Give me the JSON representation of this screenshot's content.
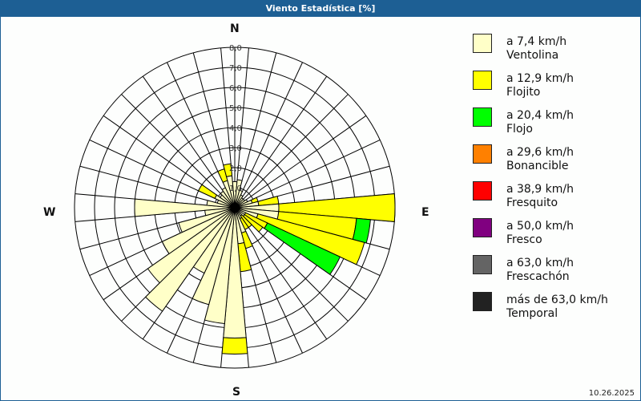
{
  "window": {
    "title": "Viento Estadística [%]"
  },
  "date": "10.26.2025",
  "compass": {
    "N": "N",
    "E": "E",
    "S": "S",
    "W": "W"
  },
  "legend": [
    {
      "range": "a 7,4 km/h",
      "name": "Ventolina",
      "color": "#ffffc8"
    },
    {
      "range": "a 12,9 km/h",
      "name": "Flojito",
      "color": "#ffff00"
    },
    {
      "range": "a 20,4 km/h",
      "name": "Flojo",
      "color": "#00ff00"
    },
    {
      "range": "a 29,6 km/h",
      "name": "Bonancible",
      "color": "#ff8000"
    },
    {
      "range": "a 38,9 km/h",
      "name": "Fresquito",
      "color": "#ff0000"
    },
    {
      "range": "a 50,0 km/h",
      "name": "Fresco",
      "color": "#800080"
    },
    {
      "range": "a 63,0 km/h",
      "name": "Frescachón",
      "color": "#646464"
    },
    {
      "range": "más de 63,0 km/h",
      "name": "Temporal",
      "color": "#222222"
    }
  ],
  "chart_data": {
    "type": "wind-rose",
    "title": "Viento Estadística [%]",
    "radial_ticks": [
      "1,0",
      "2,0",
      "3,0",
      "4,0",
      "5,0",
      "6,0",
      "7,0",
      "8,0"
    ],
    "rmax": 8.0,
    "sector_width_deg": 10,
    "series_names": [
      "Ventolina",
      "Flojito",
      "Flojo",
      "Bonancible",
      "Fresquito",
      "Fresco",
      "Frescachón",
      "Temporal"
    ],
    "sectors": [
      {
        "dir": 0,
        "cumulative": [
          1.3
        ]
      },
      {
        "dir": 10,
        "cumulative": [
          1.4
        ]
      },
      {
        "dir": 20,
        "cumulative": [
          0.9
        ]
      },
      {
        "dir": 30,
        "cumulative": [
          0.7
        ]
      },
      {
        "dir": 40,
        "cumulative": [
          0.6
        ]
      },
      {
        "dir": 50,
        "cumulative": [
          0.6
        ]
      },
      {
        "dir": 60,
        "cumulative": [
          0.7
        ]
      },
      {
        "dir": 70,
        "cumulative": [
          0.9,
          1.2
        ]
      },
      {
        "dir": 80,
        "cumulative": [
          1.2,
          2.2
        ]
      },
      {
        "dir": 90,
        "cumulative": [
          2.2,
          8.0
        ]
      },
      {
        "dir": 100,
        "cumulative": [
          2.2,
          6.1,
          6.8
        ]
      },
      {
        "dir": 110,
        "cumulative": [
          1.2,
          6.7
        ]
      },
      {
        "dir": 120,
        "cumulative": [
          0.6,
          1.8,
          5.8
        ]
      },
      {
        "dir": 130,
        "cumulative": [
          0.6,
          1.7
        ]
      },
      {
        "dir": 140,
        "cumulative": [
          0.5,
          1.2
        ]
      },
      {
        "dir": 150,
        "cumulative": [
          0.6,
          1.2
        ]
      },
      {
        "dir": 160,
        "cumulative": [
          1.3,
          2.1
        ]
      },
      {
        "dir": 170,
        "cumulative": [
          1.8,
          3.2
        ]
      },
      {
        "dir": 180,
        "cumulative": [
          6.5,
          7.3
        ]
      },
      {
        "dir": 190,
        "cumulative": [
          5.8
        ]
      },
      {
        "dir": 200,
        "cumulative": [
          5.0
        ]
      },
      {
        "dir": 210,
        "cumulative": [
          3.6
        ]
      },
      {
        "dir": 220,
        "cumulative": [
          6.3
        ]
      },
      {
        "dir": 230,
        "cumulative": [
          5.3
        ]
      },
      {
        "dir": 240,
        "cumulative": [
          4.0
        ]
      },
      {
        "dir": 250,
        "cumulative": [
          2.9
        ]
      },
      {
        "dir": 260,
        "cumulative": [
          1.5
        ]
      },
      {
        "dir": 270,
        "cumulative": [
          5.0
        ]
      },
      {
        "dir": 280,
        "cumulative": [
          1.4
        ]
      },
      {
        "dir": 290,
        "cumulative": [
          0.9
        ]
      },
      {
        "dir": 300,
        "cumulative": [
          1.1,
          2.0
        ]
      },
      {
        "dir": 310,
        "cumulative": [
          0.9
        ]
      },
      {
        "dir": 320,
        "cumulative": [
          1.0
        ]
      },
      {
        "dir": 330,
        "cumulative": [
          1.1
        ]
      },
      {
        "dir": 340,
        "cumulative": [
          1.4,
          2.0
        ]
      },
      {
        "dir": 350,
        "cumulative": [
          1.6,
          2.2
        ]
      }
    ],
    "legend_position": "right",
    "grid": true
  }
}
